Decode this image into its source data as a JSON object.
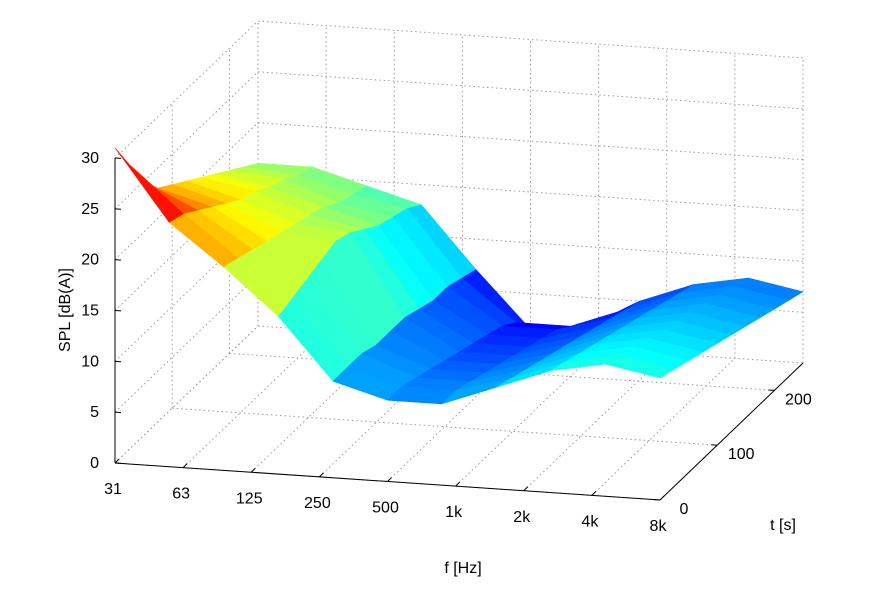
{
  "chart_data": {
    "type": "surface",
    "title": "",
    "xlabel": "f [Hz]",
    "ylabel": "t [s]",
    "zlabel": "SPL [dB(A)]",
    "colormap": "jet",
    "grid": true,
    "x_ticks": [
      "31",
      "63",
      "125",
      "250",
      "500",
      "1k",
      "2k",
      "4k",
      "8k"
    ],
    "y_ticks": [
      0,
      100,
      200
    ],
    "z_ticks": [
      0,
      5,
      10,
      15,
      20,
      25,
      30
    ],
    "xlim": [
      "31",
      "8k"
    ],
    "ylim": [
      0,
      250
    ],
    "zlim": [
      0,
      30
    ],
    "t": [
      0,
      25,
      50,
      75,
      100,
      125,
      150,
      175,
      200,
      225,
      250
    ],
    "series": [
      {
        "t": 0,
        "spl": [
          31.0,
          24.0,
          20.0,
          15.5,
          9.5,
          8.0,
          8.0,
          10.0,
          12.0,
          13.0,
          12.0
        ]
      },
      {
        "t": 25,
        "spl": [
          28.0,
          23.5,
          19.5,
          16.0,
          9.5,
          8.0,
          8.0,
          9.5,
          11.5,
          12.5,
          11.5
        ]
      },
      {
        "t": 50,
        "spl": [
          25.0,
          22.5,
          19.0,
          16.5,
          9.5,
          7.5,
          7.5,
          9.0,
          11.0,
          12.0,
          11.0
        ]
      },
      {
        "t": 75,
        "spl": [
          23.0,
          21.5,
          18.5,
          17.0,
          9.0,
          7.0,
          7.0,
          8.5,
          10.5,
          11.5,
          10.5
        ]
      },
      {
        "t": 100,
        "spl": [
          22.0,
          20.5,
          18.0,
          17.5,
          9.0,
          6.5,
          6.5,
          8.0,
          10.0,
          11.0,
          10.0
        ]
      },
      {
        "t": 125,
        "spl": [
          21.0,
          19.5,
          17.5,
          17.0,
          9.0,
          6.0,
          6.0,
          7.5,
          9.5,
          10.5,
          9.5
        ]
      },
      {
        "t": 150,
        "spl": [
          20.0,
          19.0,
          17.0,
          16.0,
          8.5,
          5.5,
          5.5,
          7.0,
          9.0,
          10.0,
          9.0
        ]
      },
      {
        "t": 175,
        "spl": [
          19.0,
          18.0,
          16.5,
          15.0,
          8.0,
          5.0,
          5.0,
          6.5,
          8.5,
          9.5,
          8.5
        ]
      },
      {
        "t": 200,
        "spl": [
          18.0,
          17.5,
          15.5,
          14.5,
          8.0,
          4.5,
          4.5,
          6.0,
          8.0,
          9.0,
          8.0
        ]
      },
      {
        "t": 225,
        "spl": [
          17.0,
          16.5,
          15.0,
          14.0,
          7.5,
          3.5,
          3.5,
          5.5,
          7.5,
          8.5,
          7.5
        ]
      },
      {
        "t": 250,
        "spl": [
          16.0,
          16.0,
          14.5,
          13.0,
          7.0,
          1.5,
          2.0,
          5.0,
          7.0,
          8.0,
          7.0
        ]
      }
    ]
  }
}
